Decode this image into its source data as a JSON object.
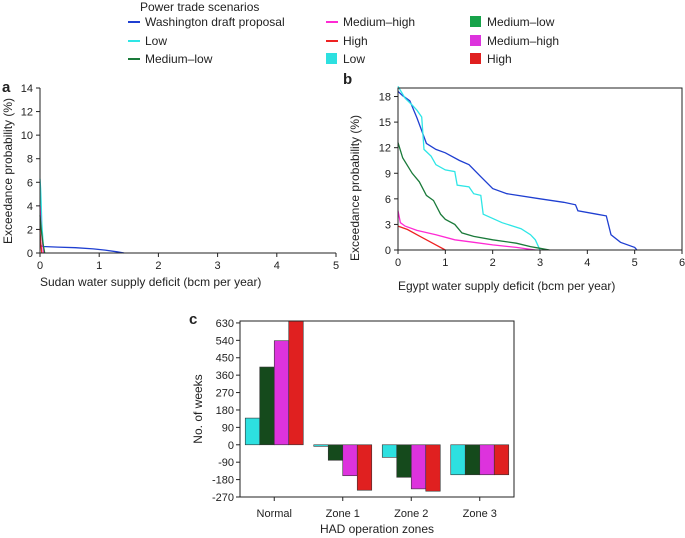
{
  "legend": {
    "title": "Power trade scenarios",
    "entries": [
      {
        "label": "Washington draft proposal",
        "color": "#1f3fd1",
        "kind": "line"
      },
      {
        "label": "Medium–high",
        "color": "#ff2ad4",
        "kind": "line"
      },
      {
        "label": "Medium–low",
        "color": "#17a34a",
        "kind": "patch"
      },
      {
        "label": "Low",
        "color": "#2ee6e6",
        "kind": "line"
      },
      {
        "label": "High",
        "color": "#ee2222",
        "kind": "line"
      },
      {
        "label": "Medium–high",
        "color": "#dd33dd",
        "kind": "patch"
      },
      {
        "label": "Medium–low",
        "color": "#1a7a3a",
        "kind": "line"
      },
      {
        "label": "Low",
        "color": "#2de0e0",
        "kind": "patch"
      },
      {
        "label": "High",
        "color": "#e02020",
        "kind": "patch"
      }
    ]
  },
  "chart_data": [
    {
      "panel": "a",
      "type": "line",
      "xlabel": "Sudan water supply deficit (bcm per year)",
      "ylabel": "Exceedance probability (%)",
      "xlim": [
        0,
        5
      ],
      "ylim": [
        0,
        14
      ],
      "xticks": [
        "0",
        "1",
        "2",
        "3",
        "4",
        "5"
      ],
      "yticks": [
        "0",
        "2",
        "4",
        "6",
        "8",
        "10",
        "12",
        "14"
      ],
      "series": [
        {
          "name": "Washington draft proposal",
          "color": "#1f3fd1",
          "x": [
            0,
            0.02,
            0.05,
            0.3,
            0.6,
            0.9,
            1.1,
            1.3,
            1.42
          ],
          "y": [
            0.6,
            0.6,
            0.55,
            0.5,
            0.45,
            0.35,
            0.25,
            0.1,
            0
          ]
        },
        {
          "name": "Low",
          "color": "#2ee6e6",
          "x": [
            0,
            0.01,
            0.02,
            0.03,
            0.05,
            0.07
          ],
          "y": [
            6.3,
            5.5,
            4.2,
            2.5,
            1.0,
            0
          ]
        },
        {
          "name": "Medium–high",
          "color": "#ff2ad4",
          "x": [
            0,
            0.01,
            0.02,
            0.04,
            0.06
          ],
          "y": [
            4.0,
            3.0,
            2.0,
            1.0,
            0
          ]
        },
        {
          "name": "Medium–low",
          "color": "#1a7a3a",
          "x": [
            0,
            0.02,
            0.05,
            0.08
          ],
          "y": [
            3.2,
            2.0,
            0.8,
            0
          ]
        },
        {
          "name": "High",
          "color": "#ee2222",
          "x": [
            0,
            0.01,
            0.03
          ],
          "y": [
            2.0,
            1.0,
            0
          ]
        }
      ]
    },
    {
      "panel": "b",
      "type": "line",
      "xlabel": "Egypt water supply deficit (bcm per year)",
      "ylabel": "Exceedance probability (%)",
      "xlim": [
        0,
        6
      ],
      "ylim": [
        0,
        19
      ],
      "xticks": [
        "0",
        "1",
        "2",
        "3",
        "4",
        "5",
        "6"
      ],
      "yticks": [
        "0",
        "3",
        "6",
        "9",
        "12",
        "15",
        "18"
      ],
      "series": [
        {
          "name": "Washington draft proposal",
          "color": "#1f3fd1",
          "x": [
            0,
            0.1,
            0.25,
            0.4,
            0.5,
            0.6,
            0.8,
            1.0,
            1.3,
            1.5,
            1.75,
            2.0,
            2.3,
            3.0,
            3.5,
            3.75,
            3.8,
            4.2,
            4.4,
            4.5,
            4.7,
            5.0,
            5.05
          ],
          "y": [
            18.6,
            18.1,
            17.5,
            15.5,
            14.0,
            12.5,
            11.8,
            11.4,
            10.5,
            10.0,
            8.6,
            7.2,
            6.6,
            6.0,
            5.6,
            5.3,
            4.6,
            4.2,
            4.0,
            1.8,
            0.9,
            0.3,
            0
          ]
        },
        {
          "name": "Low",
          "color": "#2ee6e6",
          "x": [
            0,
            0.15,
            0.3,
            0.4,
            0.5,
            0.55,
            0.7,
            0.8,
            1.0,
            1.2,
            1.25,
            1.5,
            1.6,
            1.75,
            1.8,
            2.2,
            2.6,
            2.8,
            2.9,
            3.0
          ],
          "y": [
            19.2,
            17.8,
            17.0,
            16.4,
            15.6,
            11.8,
            11.0,
            10.0,
            9.4,
            9.2,
            7.6,
            7.4,
            6.6,
            6.4,
            4.2,
            3.2,
            2.5,
            1.8,
            1.2,
            0
          ]
        },
        {
          "name": "Medium–low",
          "color": "#1a7a3a",
          "x": [
            0,
            0.1,
            0.3,
            0.45,
            0.6,
            0.75,
            0.9,
            1.0,
            1.2,
            1.35,
            1.6,
            2.0,
            2.5,
            2.8,
            3.0,
            3.2
          ],
          "y": [
            12.6,
            10.8,
            9.0,
            8.0,
            6.4,
            5.8,
            4.2,
            3.6,
            3.0,
            2.0,
            1.6,
            1.2,
            0.8,
            0.4,
            0.2,
            0
          ]
        },
        {
          "name": "Medium–high",
          "color": "#ff2ad4",
          "x": [
            0,
            0.05,
            0.15,
            0.4,
            0.8,
            1.2,
            1.6,
            2.0,
            2.5,
            2.9
          ],
          "y": [
            4.6,
            3.2,
            2.8,
            2.3,
            1.8,
            1.2,
            0.9,
            0.6,
            0.3,
            0
          ]
        },
        {
          "name": "High",
          "color": "#ee2222",
          "x": [
            0,
            0.2,
            0.4,
            0.6,
            0.8,
            1.0
          ],
          "y": [
            2.8,
            2.4,
            1.8,
            1.2,
            0.6,
            0
          ]
        }
      ]
    },
    {
      "panel": "c",
      "type": "bar",
      "xlabel": "HAD operation zones",
      "ylabel": "No. of weeks",
      "ylim": [
        -270,
        640
      ],
      "yticks": [
        "630",
        "540",
        "450",
        "360",
        "270",
        "180",
        "90",
        "0",
        "-90",
        "-180",
        "-270"
      ],
      "categories": [
        "Normal",
        "Zone 1",
        "Zone 2",
        "Zone 3"
      ],
      "series": [
        {
          "name": "Low",
          "color": "#2de0e0",
          "values": [
            138,
            -8,
            -65,
            -155
          ]
        },
        {
          "name": "Medium–low",
          "color": "#154a1c",
          "values": [
            402,
            -80,
            -168,
            -155
          ]
        },
        {
          "name": "Medium–high",
          "color": "#dd33dd",
          "values": [
            538,
            -160,
            -228,
            -155
          ]
        },
        {
          "name": "High",
          "color": "#e02020",
          "values": [
            640,
            -235,
            -240,
            -155
          ]
        }
      ]
    }
  ]
}
